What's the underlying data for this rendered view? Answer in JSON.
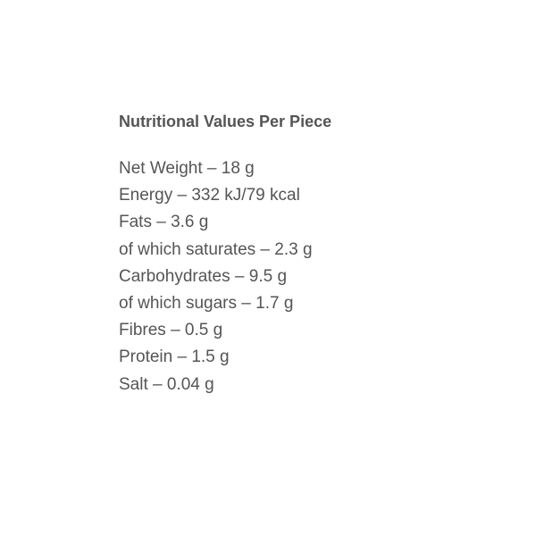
{
  "title": "Nutritional Values Per Piece",
  "items": [
    "Net Weight – 18 g",
    "Energy – 332 kJ/79 kcal",
    "Fats – 3.6 g",
    "of which saturates – 2.3 g",
    "Carbohydrates – 9.5 g",
    "of which sugars – 1.7 g",
    "Fibres – 0.5 g",
    "Protein – 1.5 g",
    "Salt – 0.04 g"
  ]
}
